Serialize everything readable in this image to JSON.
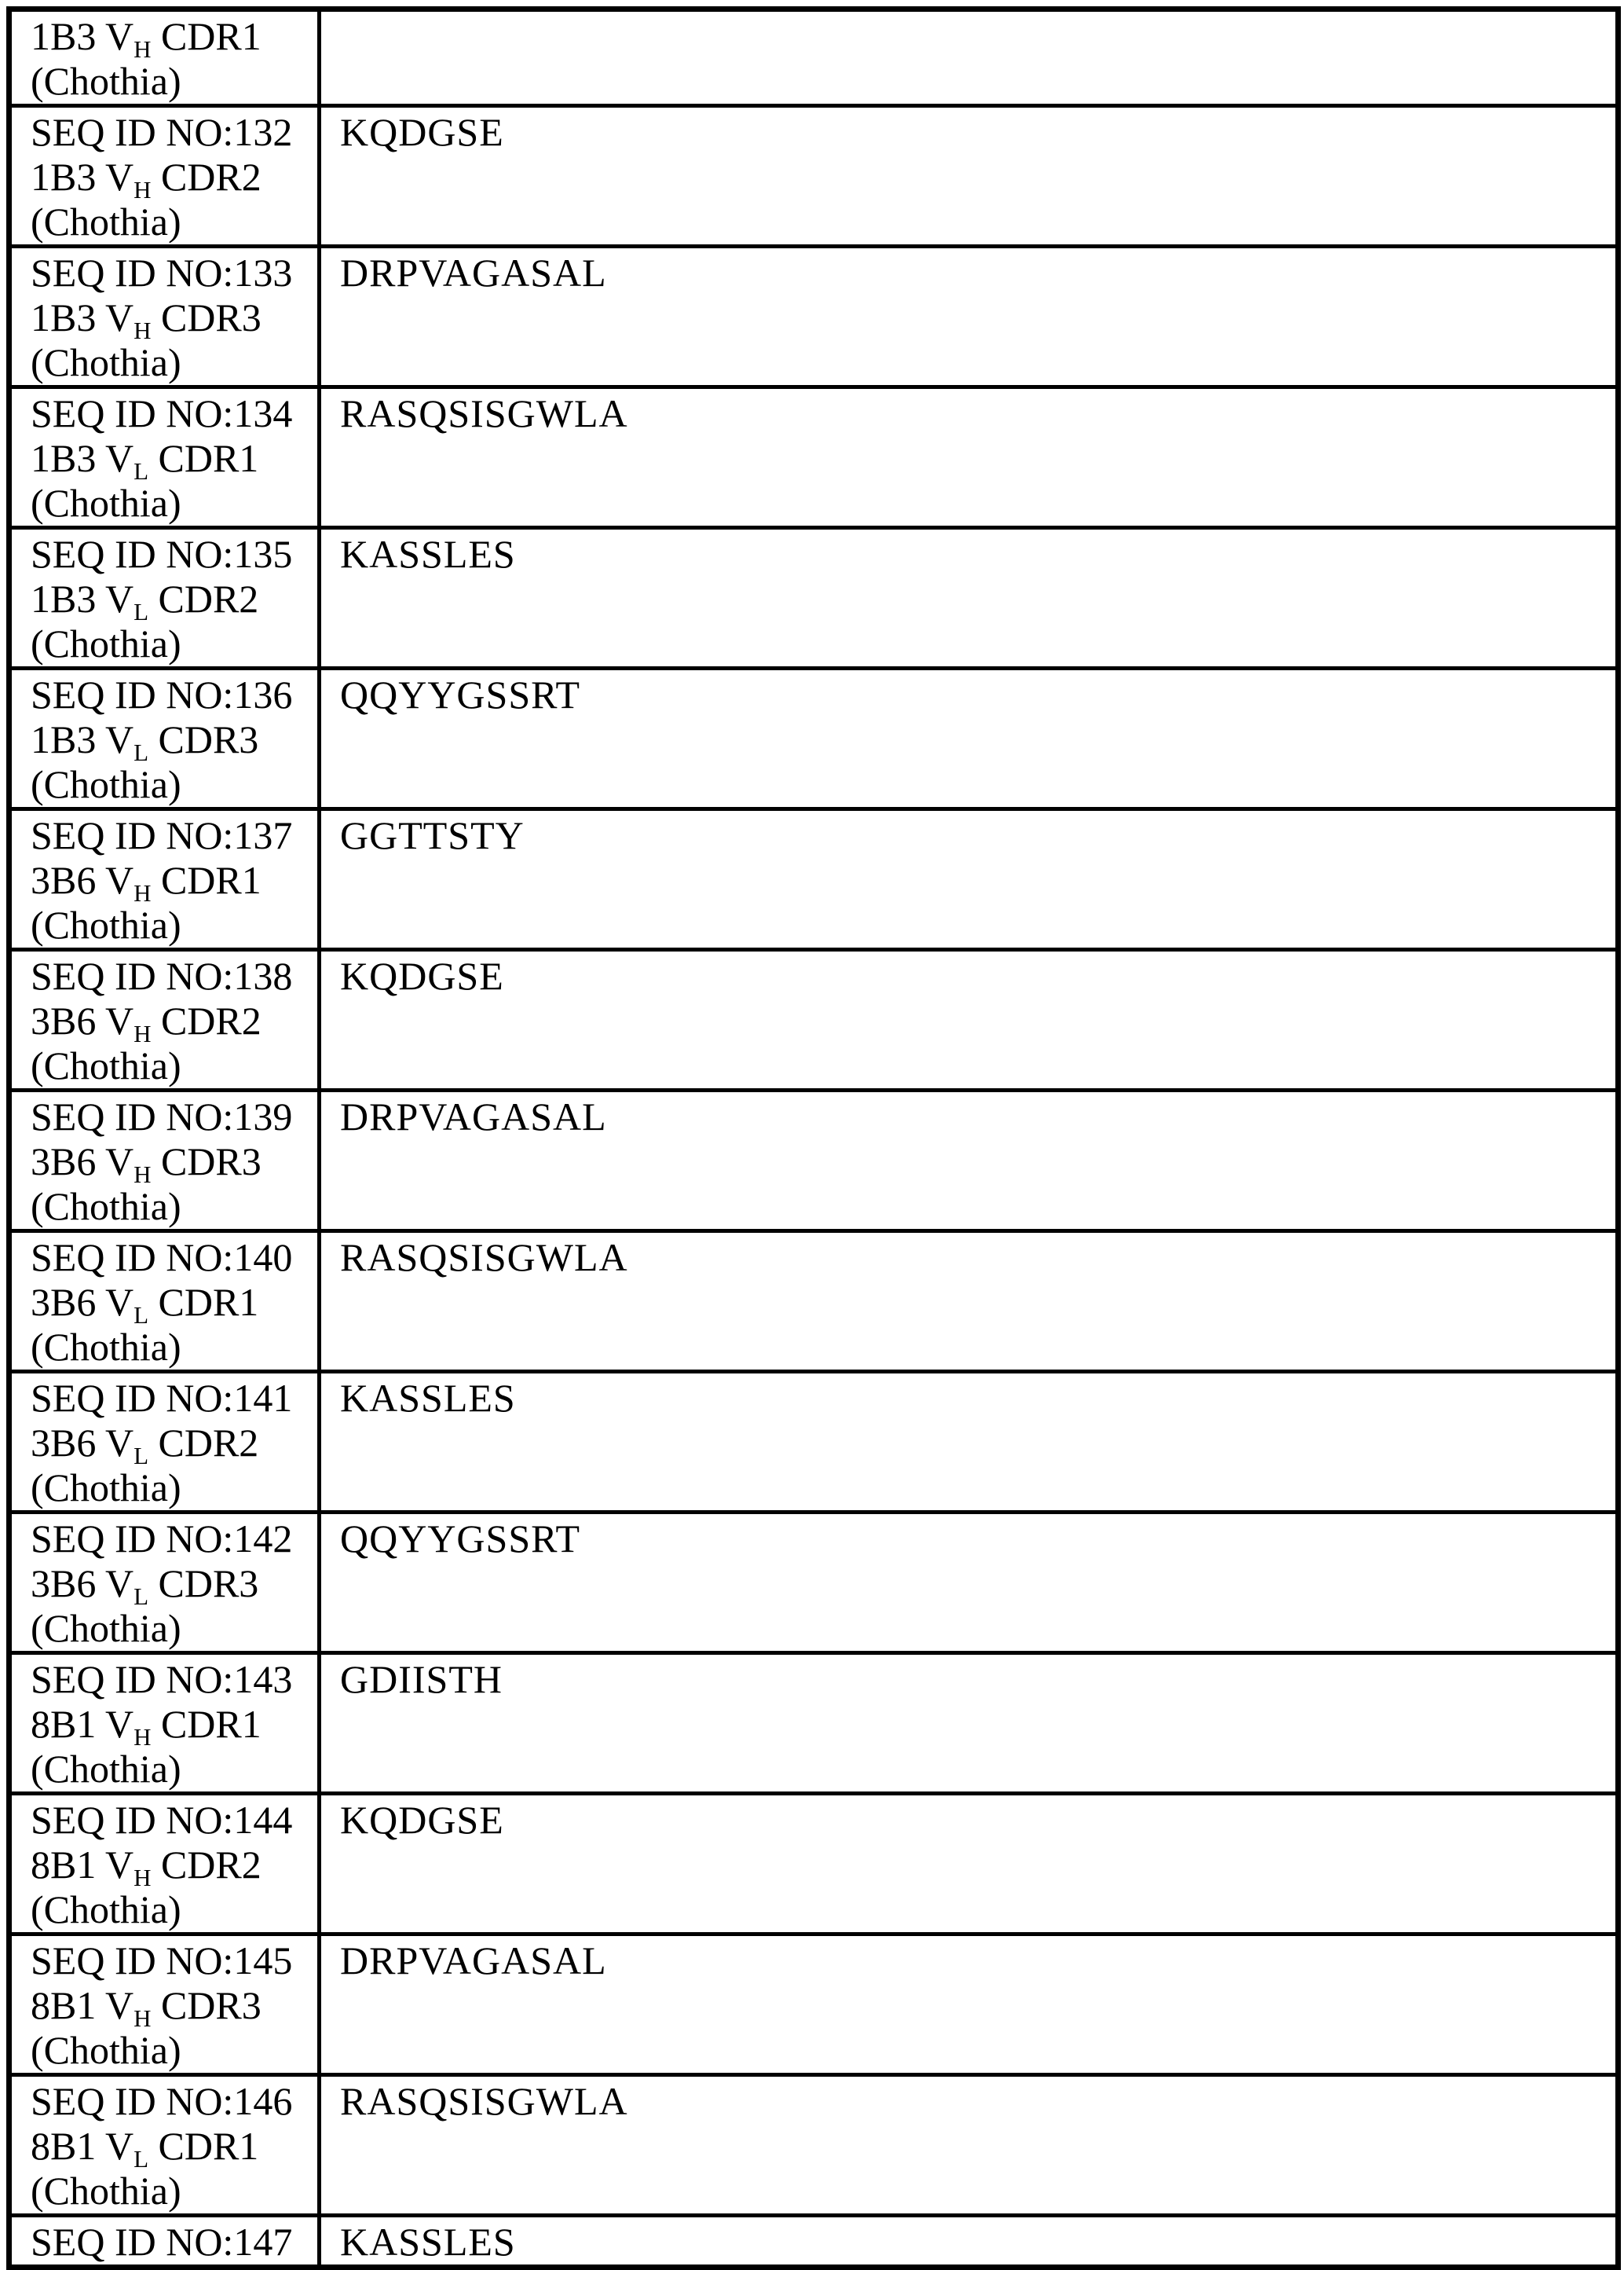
{
  "document": {
    "kind": "sequence-listing-table",
    "border_color": "#000000",
    "background_color": "#ffffff"
  },
  "table": {
    "rows": [
      {
        "seq_id": "",
        "label_main": "1B3 V",
        "label_sub": "H",
        "label_rest": " CDR1",
        "numbering": "(Chothia)",
        "sequence": ""
      },
      {
        "seq_id": "SEQ ID NO:132",
        "label_main": "1B3 V",
        "label_sub": "H",
        "label_rest": " CDR2",
        "numbering": "(Chothia)",
        "sequence": "KQDGSE"
      },
      {
        "seq_id": "SEQ ID NO:133",
        "label_main": "1B3 V",
        "label_sub": "H",
        "label_rest": " CDR3",
        "numbering": "(Chothia)",
        "sequence": "DRPVAGASAL"
      },
      {
        "seq_id": "SEQ ID NO:134",
        "label_main": "1B3 V",
        "label_sub": "L",
        "label_rest": " CDR1",
        "numbering": "(Chothia)",
        "sequence": "RASQSISGWLA"
      },
      {
        "seq_id": "SEQ ID NO:135",
        "label_main": "1B3 V",
        "label_sub": "L",
        "label_rest": " CDR2",
        "numbering": "(Chothia)",
        "sequence": "KASSLES"
      },
      {
        "seq_id": "SEQ ID NO:136",
        "label_main": "1B3 V",
        "label_sub": "L",
        "label_rest": " CDR3",
        "numbering": "(Chothia)",
        "sequence": "QQYYGSSRT"
      },
      {
        "seq_id": "SEQ ID NO:137",
        "label_main": "3B6 V",
        "label_sub": "H",
        "label_rest": " CDR1",
        "numbering": "(Chothia)",
        "sequence": "GGTTSTY"
      },
      {
        "seq_id": "SEQ ID NO:138",
        "label_main": "3B6 V",
        "label_sub": "H",
        "label_rest": " CDR2",
        "numbering": "(Chothia)",
        "sequence": "KQDGSE"
      },
      {
        "seq_id": "SEQ ID NO:139",
        "label_main": "3B6 V",
        "label_sub": "H",
        "label_rest": " CDR3",
        "numbering": "(Chothia)",
        "sequence": "DRPVAGASAL"
      },
      {
        "seq_id": "SEQ ID NO:140",
        "label_main": "3B6 V",
        "label_sub": "L",
        "label_rest": " CDR1",
        "numbering": "(Chothia)",
        "sequence": "RASQSISGWLA"
      },
      {
        "seq_id": "SEQ ID NO:141",
        "label_main": "3B6 V",
        "label_sub": "L",
        "label_rest": " CDR2",
        "numbering": "(Chothia)",
        "sequence": "KASSLES"
      },
      {
        "seq_id": "SEQ ID NO:142",
        "label_main": "3B6 V",
        "label_sub": "L",
        "label_rest": " CDR3",
        "numbering": "(Chothia)",
        "sequence": "QQYYGSSRT"
      },
      {
        "seq_id": "SEQ ID NO:143",
        "label_main": "8B1 V",
        "label_sub": "H",
        "label_rest": " CDR1",
        "numbering": "(Chothia)",
        "sequence": "GDIISTH"
      },
      {
        "seq_id": "SEQ ID NO:144",
        "label_main": "8B1 V",
        "label_sub": "H",
        "label_rest": " CDR2",
        "numbering": "(Chothia)",
        "sequence": "KQDGSE"
      },
      {
        "seq_id": "SEQ ID NO:145",
        "label_main": "8B1 V",
        "label_sub": "H",
        "label_rest": " CDR3",
        "numbering": "(Chothia)",
        "sequence": "DRPVAGASAL"
      },
      {
        "seq_id": "SEQ ID NO:146",
        "label_main": "8B1 V",
        "label_sub": "L",
        "label_rest": " CDR1",
        "numbering": "(Chothia)",
        "sequence": "RASQSISGWLA"
      },
      {
        "seq_id": "SEQ ID NO:147",
        "label_main": "",
        "label_sub": "",
        "label_rest": "",
        "numbering": "",
        "sequence": "KASSLES"
      }
    ]
  }
}
